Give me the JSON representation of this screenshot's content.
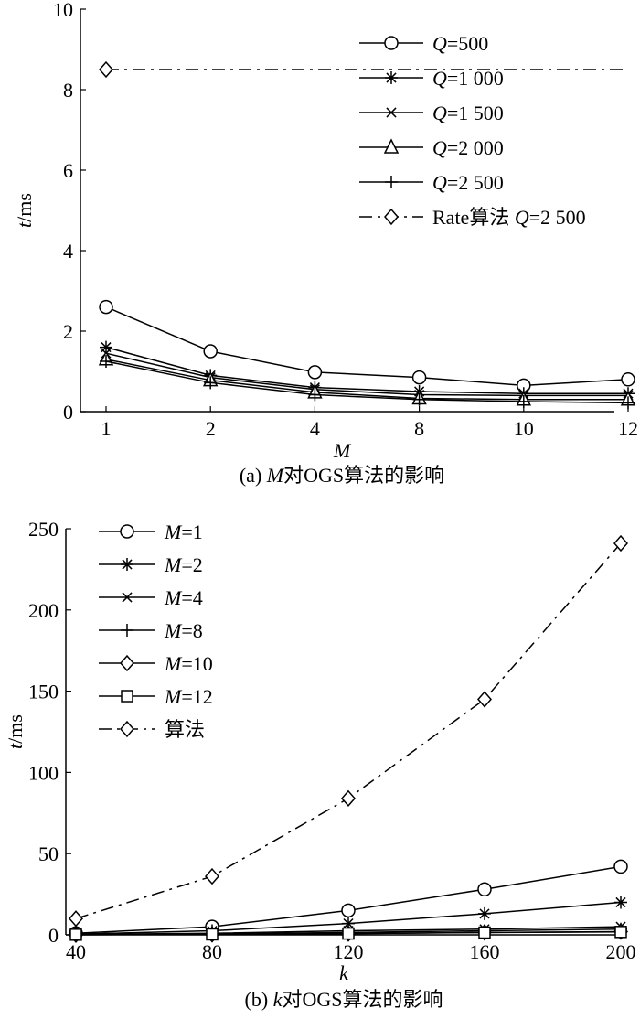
{
  "chart_data": [
    {
      "type": "line",
      "caption_prefix": "(a) ",
      "caption_var": "M",
      "caption_rest": "对OGS算法的影响",
      "xlabel": "M",
      "ylabel": "t/ms",
      "x_tick_labels": [
        "1",
        "2",
        "4",
        "8",
        "10",
        "12"
      ],
      "x_positions": [
        0,
        1,
        2,
        3,
        4,
        5
      ],
      "y_ticks": [
        "0",
        "2",
        "4",
        "6",
        "8",
        "10"
      ],
      "ylim": [
        0,
        10
      ],
      "legend_placement": "top-right",
      "series": [
        {
          "name_var": "Q",
          "name_rest": "=500",
          "marker": "circle",
          "dash": "solid",
          "values": [
            2.6,
            1.5,
            0.98,
            0.85,
            0.65,
            0.8
          ]
        },
        {
          "name_var": "Q",
          "name_rest": "=1 000",
          "marker": "asterisk",
          "dash": "solid",
          "values": [
            1.6,
            0.9,
            0.6,
            0.5,
            0.45,
            0.45
          ]
        },
        {
          "name_var": "Q",
          "name_rest": "=1 500",
          "marker": "x",
          "dash": "solid",
          "values": [
            1.45,
            0.85,
            0.55,
            0.42,
            0.4,
            0.4
          ]
        },
        {
          "name_var": "Q",
          "name_rest": "=2 000",
          "marker": "triangle",
          "dash": "solid",
          "values": [
            1.3,
            0.78,
            0.48,
            0.33,
            0.3,
            0.3
          ]
        },
        {
          "name_var": "Q",
          "name_rest": "=2 500",
          "marker": "plus",
          "dash": "solid",
          "values": [
            1.25,
            0.72,
            0.42,
            0.3,
            0.25,
            0.22
          ]
        },
        {
          "name_prefix": "Rate算法 ",
          "name_var": "Q",
          "name_rest": "=2 500",
          "marker": "diamond",
          "dash": "dashdot",
          "values": [
            8.5,
            8.5,
            8.5,
            8.5,
            8.5,
            8.5
          ]
        }
      ]
    },
    {
      "type": "line",
      "caption_prefix": "(b) ",
      "caption_var": "k",
      "caption_rest": "对OGS算法的影响",
      "xlabel": "k",
      "ylabel": "t/ms",
      "x_tick_labels": [
        "40",
        "80",
        "120",
        "160",
        "200"
      ],
      "x_positions": [
        40,
        80,
        120,
        160,
        200
      ],
      "y_ticks": [
        "0",
        "50",
        "100",
        "150",
        "200",
        "250"
      ],
      "ylim": [
        0,
        250
      ],
      "legend_placement": "top-left",
      "series": [
        {
          "name_var": "M",
          "name_rest": "=1",
          "marker": "circle",
          "dash": "solid",
          "values": [
            1,
            5,
            15,
            28,
            42
          ]
        },
        {
          "name_var": "M",
          "name_rest": "=2",
          "marker": "asterisk",
          "dash": "solid",
          "values": [
            0.5,
            2.5,
            7,
            13,
            20
          ]
        },
        {
          "name_var": "M",
          "name_rest": "=4",
          "marker": "x",
          "dash": "solid",
          "values": [
            0.3,
            1,
            2.5,
            3.5,
            5
          ]
        },
        {
          "name_var": "M",
          "name_rest": "=8",
          "marker": "plus",
          "dash": "solid",
          "values": [
            0.2,
            0.6,
            1.5,
            2.5,
            3.5
          ]
        },
        {
          "name_var": "M",
          "name_rest": "=10",
          "marker": "diamond",
          "dash": "solid",
          "values": [
            0.1,
            0.3,
            0.8,
            1.5,
            2
          ]
        },
        {
          "name_var": "M",
          "name_rest": "=12",
          "marker": "square",
          "dash": "solid",
          "values": [
            0.1,
            0.3,
            0.8,
            1.4,
            1.8
          ]
        },
        {
          "name_var": "",
          "name_rest": "算法",
          "marker": "diamond",
          "dash": "dashdot",
          "values": [
            10,
            36,
            84,
            145,
            241
          ]
        }
      ]
    }
  ]
}
